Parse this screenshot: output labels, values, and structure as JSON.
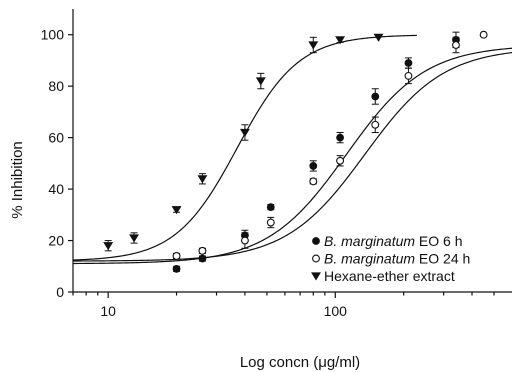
{
  "chart_data": {
    "type": "scatter",
    "xscale": "log",
    "xlabel": "Log concn (μg/ml)",
    "ylabel": "% Inhibition",
    "xlim": [
      7,
      600
    ],
    "ylim": [
      0,
      110
    ],
    "xticks": [
      10,
      100
    ],
    "xtick_labels": [
      "10",
      "100"
    ],
    "yticks": [
      0,
      20,
      40,
      60,
      80,
      100
    ],
    "ytick_labels": [
      "0",
      "20",
      "40",
      "60",
      "80",
      "100"
    ],
    "grid": false,
    "legend_position": "bottom-right",
    "series": [
      {
        "name_italic": "B. marginatum",
        "name_suffix": " EO 6 h",
        "marker": "filled-circle",
        "x": [
          20,
          26,
          40,
          52,
          80,
          105,
          150,
          210,
          340
        ],
        "y": [
          9,
          13,
          22,
          33,
          49,
          60,
          76,
          89,
          98
        ],
        "err": [
          1,
          1,
          2,
          1,
          2,
          2,
          3,
          2,
          3
        ],
        "fit": {
          "bottom": 11,
          "top": 96,
          "ec50": 112,
          "hill": 2.5
        }
      },
      {
        "name_italic": "B. marginatum",
        "name_suffix": " EO 24 h",
        "marker": "open-circle",
        "x": [
          20,
          26,
          40,
          52,
          80,
          105,
          150,
          210,
          340,
          450
        ],
        "y": [
          14,
          16,
          20,
          27,
          43,
          51,
          65,
          84,
          96,
          100
        ],
        "err": [
          1,
          1,
          3,
          2,
          1,
          2,
          3,
          3,
          3,
          0
        ],
        "fit": {
          "bottom": 12,
          "top": 95,
          "ec50": 135,
          "hill": 2.5
        }
      },
      {
        "name_italic": "",
        "name_suffix": "Hexane-ether extract",
        "marker": "filled-triangle-down",
        "x": [
          10,
          13,
          20,
          26,
          40,
          47,
          80,
          105,
          155
        ],
        "y": [
          18,
          21,
          32,
          44,
          62,
          82,
          96,
          98,
          99
        ],
        "err": [
          2,
          2,
          1,
          2,
          3,
          3,
          3,
          1,
          0
        ],
        "fit": {
          "bottom": 12,
          "top": 100,
          "ec50": 37,
          "hill": 3.2
        }
      }
    ]
  },
  "colors": {
    "ink": "#111111",
    "background": "#ffffff"
  }
}
